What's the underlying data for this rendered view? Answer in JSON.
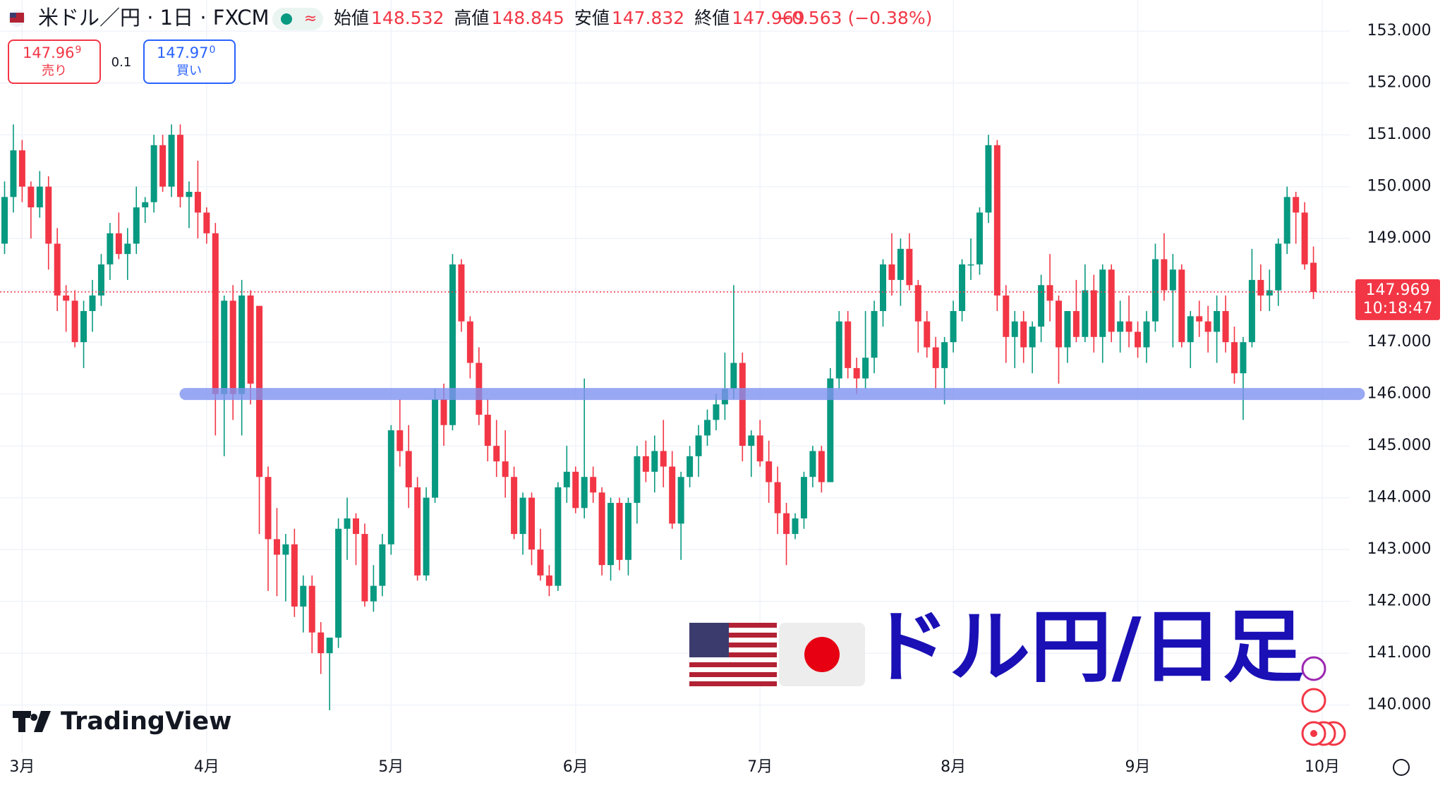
{
  "chart_data": {
    "type": "candlestick",
    "title": "米ドル／円 · 1日 · FXCM",
    "header_stats": [
      {
        "label": "始値",
        "value": 148.532
      },
      {
        "label": "高値",
        "value": 148.845
      },
      {
        "label": "安値",
        "value": 147.832
      },
      {
        "label": "終値",
        "value": 147.969
      }
    ],
    "change": "−0.563 (−0.38%)",
    "sell": {
      "price": "147.96",
      "pip": "9",
      "label": "売り"
    },
    "spread": 0.1,
    "buy": {
      "price": "147.97",
      "pip": "0",
      "label": "買い"
    },
    "countdown": "10:18:47",
    "overlay_text": "ドル円/日足",
    "brand": "TradingView",
    "up_color": "#089981",
    "down_color": "#f23645",
    "horizontal_line": {
      "value": 146.0,
      "color": "#8093f1"
    },
    "ylim": [
      139.07,
      153.6
    ],
    "yticks": [
      {
        "value": 140,
        "label": "140.000"
      },
      {
        "value": 141,
        "label": "141.000"
      },
      {
        "value": 142,
        "label": "142.000"
      },
      {
        "value": 143,
        "label": "143.000"
      },
      {
        "value": 144,
        "label": "144.000"
      },
      {
        "value": 145,
        "label": "145.000"
      },
      {
        "value": 146,
        "label": "146.000"
      },
      {
        "value": 147,
        "label": "147.000"
      },
      {
        "value": 148,
        "label": "148.000"
      },
      {
        "value": 149,
        "label": "149.000"
      },
      {
        "value": 150,
        "label": "150.000"
      },
      {
        "value": 151,
        "label": "151.000"
      },
      {
        "value": 152,
        "label": "152.000"
      },
      {
        "value": 153,
        "label": "153.000"
      }
    ],
    "xticks": [
      {
        "value": 2,
        "label": "3月"
      },
      {
        "value": 23,
        "label": "4月"
      },
      {
        "value": 44,
        "label": "5月"
      },
      {
        "value": 65,
        "label": "6月"
      },
      {
        "value": 86,
        "label": "7月"
      },
      {
        "value": 108,
        "label": "8月"
      },
      {
        "value": 129,
        "label": "9月"
      },
      {
        "value": 150,
        "label": "10月"
      }
    ],
    "grid": true,
    "ohlc": [
      [
        148.9,
        150.1,
        148.7,
        149.8
      ],
      [
        149.8,
        151.2,
        149.5,
        150.7
      ],
      [
        150.7,
        150.9,
        149.7,
        150.0
      ],
      [
        150.0,
        150.1,
        149.0,
        149.6
      ],
      [
        149.6,
        150.3,
        149.4,
        150.0
      ],
      [
        150.0,
        150.2,
        148.4,
        148.9
      ],
      [
        148.9,
        149.2,
        147.6,
        147.9
      ],
      [
        147.9,
        148.1,
        147.2,
        147.8
      ],
      [
        147.8,
        148.0,
        146.9,
        147.0
      ],
      [
        147.0,
        147.8,
        146.5,
        147.6
      ],
      [
        147.6,
        148.2,
        147.2,
        147.9
      ],
      [
        147.9,
        148.7,
        147.7,
        148.5
      ],
      [
        148.5,
        149.3,
        148.2,
        149.1
      ],
      [
        149.1,
        149.5,
        148.6,
        148.7
      ],
      [
        148.7,
        149.2,
        148.2,
        148.9
      ],
      [
        148.9,
        150.0,
        148.7,
        149.6
      ],
      [
        149.6,
        149.8,
        149.3,
        149.7
      ],
      [
        149.7,
        151.0,
        149.5,
        150.8
      ],
      [
        150.8,
        151.0,
        149.9,
        150.0
      ],
      [
        150.0,
        151.2,
        149.8,
        151.0
      ],
      [
        151.0,
        151.2,
        149.6,
        149.8
      ],
      [
        149.8,
        150.1,
        149.2,
        149.9
      ],
      [
        149.9,
        150.5,
        149.0,
        149.5
      ],
      [
        149.5,
        149.6,
        148.9,
        149.1
      ],
      [
        149.1,
        149.3,
        145.2,
        146.0
      ],
      [
        146.0,
        147.9,
        144.8,
        147.8
      ],
      [
        147.8,
        148.1,
        145.5,
        146.0
      ],
      [
        146.0,
        148.2,
        145.2,
        147.9
      ],
      [
        147.9,
        148.0,
        145.8,
        146.2
      ],
      [
        147.7,
        147.7,
        143.3,
        144.4
      ],
      [
        144.4,
        144.6,
        142.2,
        143.2
      ],
      [
        143.2,
        143.8,
        142.1,
        142.9
      ],
      [
        142.9,
        143.3,
        142.0,
        143.1
      ],
      [
        143.1,
        143.4,
        141.7,
        141.9
      ],
      [
        141.9,
        142.5,
        141.4,
        142.3
      ],
      [
        142.3,
        142.5,
        141.0,
        141.4
      ],
      [
        141.4,
        141.6,
        140.6,
        141.0
      ],
      [
        141.0,
        141.3,
        139.9,
        141.3
      ],
      [
        141.3,
        143.6,
        141.1,
        143.4
      ],
      [
        143.4,
        144.0,
        142.8,
        143.6
      ],
      [
        143.6,
        143.7,
        142.7,
        143.3
      ],
      [
        143.3,
        143.5,
        141.9,
        142.0
      ],
      [
        142.0,
        142.7,
        141.8,
        142.3
      ],
      [
        142.3,
        143.3,
        142.1,
        143.1
      ],
      [
        143.1,
        145.4,
        142.9,
        145.3
      ],
      [
        145.3,
        145.9,
        144.6,
        144.9
      ],
      [
        144.9,
        145.4,
        143.8,
        144.2
      ],
      [
        144.2,
        144.4,
        142.4,
        142.5
      ],
      [
        142.5,
        144.2,
        142.4,
        144.0
      ],
      [
        144.0,
        146.1,
        143.9,
        145.9
      ],
      [
        145.9,
        146.2,
        145.0,
        145.4
      ],
      [
        145.4,
        148.7,
        145.3,
        148.5
      ],
      [
        148.5,
        148.6,
        147.2,
        147.4
      ],
      [
        147.4,
        147.5,
        146.3,
        146.6
      ],
      [
        146.6,
        146.9,
        145.4,
        145.6
      ],
      [
        145.6,
        145.9,
        144.7,
        145.0
      ],
      [
        145.0,
        145.5,
        144.4,
        144.7
      ],
      [
        144.7,
        145.3,
        144.0,
        144.4
      ],
      [
        144.4,
        144.6,
        143.2,
        143.3
      ],
      [
        143.3,
        144.1,
        142.9,
        144.0
      ],
      [
        144.0,
        144.1,
        142.7,
        143.0
      ],
      [
        143.0,
        143.4,
        142.4,
        142.5
      ],
      [
        142.5,
        142.7,
        142.1,
        142.3
      ],
      [
        142.3,
        144.3,
        142.2,
        144.2
      ],
      [
        144.2,
        145.0,
        143.9,
        144.5
      ],
      [
        144.5,
        144.6,
        143.7,
        143.8
      ],
      [
        143.8,
        146.3,
        143.6,
        144.4
      ],
      [
        144.4,
        144.6,
        143.9,
        144.1
      ],
      [
        144.1,
        144.2,
        142.5,
        142.7
      ],
      [
        142.7,
        144.0,
        142.4,
        143.9
      ],
      [
        143.9,
        144.0,
        142.6,
        142.8
      ],
      [
        142.8,
        144.0,
        142.5,
        143.9
      ],
      [
        143.9,
        145.0,
        143.5,
        144.8
      ],
      [
        144.8,
        145.1,
        144.3,
        144.5
      ],
      [
        144.5,
        145.2,
        144.1,
        144.9
      ],
      [
        144.9,
        145.5,
        144.2,
        144.6
      ],
      [
        144.6,
        144.9,
        143.4,
        143.5
      ],
      [
        143.5,
        144.5,
        142.8,
        144.4
      ],
      [
        144.4,
        145.0,
        144.2,
        144.8
      ],
      [
        144.8,
        145.4,
        144.4,
        145.2
      ],
      [
        145.2,
        145.7,
        145.0,
        145.5
      ],
      [
        145.5,
        146.0,
        145.3,
        145.8
      ],
      [
        145.8,
        146.8,
        145.5,
        146.1
      ],
      [
        146.1,
        148.1,
        145.9,
        146.6
      ],
      [
        146.6,
        146.8,
        144.7,
        145.0
      ],
      [
        145.0,
        145.3,
        144.4,
        145.2
      ],
      [
        145.2,
        145.5,
        144.6,
        144.7
      ],
      [
        144.7,
        145.1,
        143.9,
        144.3
      ],
      [
        144.3,
        144.6,
        143.3,
        143.7
      ],
      [
        143.7,
        143.9,
        142.7,
        143.3
      ],
      [
        143.3,
        143.7,
        143.2,
        143.6
      ],
      [
        143.6,
        144.5,
        143.4,
        144.4
      ],
      [
        144.4,
        145.0,
        144.2,
        144.9
      ],
      [
        144.9,
        145.0,
        144.1,
        144.3
      ],
      [
        144.3,
        146.5,
        144.3,
        146.3
      ],
      [
        146.3,
        147.6,
        146.1,
        147.4
      ],
      [
        147.4,
        147.6,
        146.3,
        146.5
      ],
      [
        146.5,
        146.7,
        146.0,
        146.3
      ],
      [
        146.3,
        147.6,
        146.1,
        146.7
      ],
      [
        146.7,
        147.8,
        146.4,
        147.6
      ],
      [
        147.6,
        148.6,
        147.3,
        148.5
      ],
      [
        148.5,
        149.1,
        147.9,
        148.2
      ],
      [
        148.2,
        149.0,
        147.7,
        148.8
      ],
      [
        148.8,
        149.1,
        148.0,
        148.1
      ],
      [
        148.1,
        148.2,
        146.8,
        147.4
      ],
      [
        147.4,
        147.6,
        146.7,
        146.9
      ],
      [
        146.9,
        147.1,
        146.1,
        146.5
      ],
      [
        146.5,
        147.1,
        145.8,
        147.0
      ],
      [
        147.0,
        147.8,
        146.8,
        147.6
      ],
      [
        147.6,
        148.6,
        147.4,
        148.5
      ],
      [
        148.5,
        149.0,
        148.2,
        148.5
      ],
      [
        148.5,
        149.6,
        148.3,
        149.5
      ],
      [
        149.5,
        151.0,
        149.3,
        150.8
      ],
      [
        150.8,
        150.9,
        147.6,
        147.9
      ],
      [
        147.9,
        148.1,
        146.6,
        147.1
      ],
      [
        147.1,
        147.6,
        146.5,
        147.4
      ],
      [
        147.4,
        147.6,
        146.6,
        146.9
      ],
      [
        146.9,
        147.4,
        146.4,
        147.3
      ],
      [
        147.3,
        148.3,
        147.0,
        148.1
      ],
      [
        148.1,
        148.7,
        147.4,
        147.8
      ],
      [
        147.8,
        147.9,
        146.2,
        146.9
      ],
      [
        146.9,
        147.6,
        146.6,
        147.6
      ],
      [
        147.6,
        148.2,
        147.0,
        147.1
      ],
      [
        147.1,
        148.5,
        147.0,
        148.0
      ],
      [
        148.0,
        148.3,
        146.8,
        147.1
      ],
      [
        147.1,
        148.5,
        146.6,
        148.4
      ],
      [
        148.4,
        148.5,
        147.0,
        147.2
      ],
      [
        147.2,
        147.8,
        146.8,
        147.4
      ],
      [
        147.4,
        147.9,
        146.9,
        147.2
      ],
      [
        147.2,
        147.4,
        146.7,
        146.9
      ],
      [
        146.9,
        147.6,
        146.6,
        147.4
      ],
      [
        147.4,
        148.9,
        147.2,
        148.6
      ],
      [
        148.6,
        149.1,
        147.8,
        148.0
      ],
      [
        148.0,
        148.7,
        146.9,
        148.4
      ],
      [
        148.4,
        148.5,
        146.9,
        147.0
      ],
      [
        147.0,
        147.6,
        146.5,
        147.5
      ],
      [
        147.5,
        147.8,
        147.1,
        147.4
      ],
      [
        147.4,
        147.7,
        146.8,
        147.2
      ],
      [
        147.2,
        147.9,
        146.6,
        147.6
      ],
      [
        147.6,
        147.9,
        146.8,
        147.0
      ],
      [
        147.0,
        147.3,
        146.2,
        146.4
      ],
      [
        146.4,
        147.1,
        145.5,
        147.0
      ],
      [
        147.0,
        148.8,
        146.9,
        148.2
      ],
      [
        148.2,
        148.5,
        147.6,
        147.9
      ],
      [
        147.9,
        148.4,
        147.6,
        148.0
      ],
      [
        148.0,
        149.0,
        147.7,
        148.9
      ],
      [
        148.9,
        150.0,
        148.7,
        149.8
      ],
      [
        149.8,
        149.9,
        148.9,
        149.5
      ],
      [
        149.5,
        149.7,
        148.4,
        148.5
      ],
      [
        148.532,
        148.845,
        147.832,
        147.969
      ]
    ]
  }
}
